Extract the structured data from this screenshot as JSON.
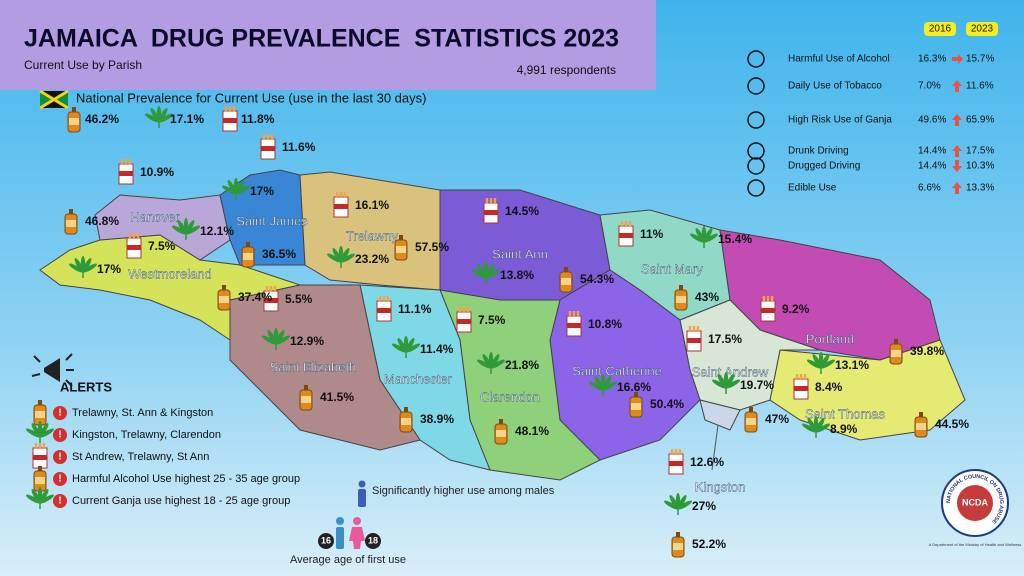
{
  "header": {
    "title": "JAMAICA  DRUG PREVALENCE  STATISTICS 2023",
    "subtitle": "Current Use by Parish",
    "respondents": "4,991 respondents"
  },
  "national": {
    "label": "National Prevalence for Current Use (use in the last 30 days)",
    "alcohol": "46.2%",
    "ganja": "17.1%",
    "tobacco": "11.8%"
  },
  "comparison": {
    "headers": [
      "2016",
      "2023"
    ],
    "rows": [
      {
        "label": "Harmful Use of Alcohol",
        "y2016": "16.3%",
        "y2023": "15.7%"
      },
      {
        "label": "Daily Use of Tobacco",
        "y2016": "7.0%",
        "y2023": "11.6%"
      },
      {
        "label": "High Risk Use of Ganja",
        "y2016": "49.6%",
        "y2023": "65.9%"
      },
      {
        "label": "Drunk Driving",
        "y2016": "14.4%",
        "y2023": "17.5%"
      },
      {
        "label": "Drugged Driving",
        "y2016": "14.4%",
        "y2023": "10.3%"
      },
      {
        "label": "Edible Use",
        "y2016": "6.6%",
        "y2023": "13.3%"
      }
    ]
  },
  "parishes": [
    {
      "name": "Hanover",
      "alcohol": "46.8%",
      "ganja": "12.1%",
      "tobacco": "10.9%"
    },
    {
      "name": "Saint James",
      "alcohol": "36.5%",
      "ganja": "17%",
      "tobacco": "11.6%"
    },
    {
      "name": "Trelawny",
      "alcohol": "57.5%",
      "ganja": "23.2%",
      "tobacco": "16.1%"
    },
    {
      "name": "Saint Ann",
      "alcohol": "54.3%",
      "ganja": "13.8%",
      "tobacco": "14.5%"
    },
    {
      "name": "Saint Mary",
      "alcohol": "43%",
      "ganja": "15.4%",
      "tobacco": "11%"
    },
    {
      "name": "Portland",
      "alcohol": "39.8%",
      "ganja": "13.1%",
      "tobacco": "9.2%"
    },
    {
      "name": "Saint Thomas",
      "alcohol": "44.5%",
      "ganja": "8.9%",
      "tobacco": "8.4%"
    },
    {
      "name": "Saint Andrew",
      "alcohol": "47%",
      "ganja": "19.7%",
      "tobacco": "17.5%"
    },
    {
      "name": "Kingston",
      "alcohol": "52.2%",
      "ganja": "27%",
      "tobacco": "12.6%"
    },
    {
      "name": "Saint Catherine",
      "alcohol": "50.4%",
      "ganja": "16.6%",
      "tobacco": "10.8%"
    },
    {
      "name": "Clarendon",
      "alcohol": "48.1%",
      "ganja": "21.8%",
      "tobacco": "7.5%"
    },
    {
      "name": "Manchester",
      "alcohol": "38.9%",
      "ganja": "11.4%",
      "tobacco": "11.1%"
    },
    {
      "name": "Saint Elizabeth",
      "alcohol": "41.5%",
      "ganja": "12.9%",
      "tobacco": "5.5%"
    },
    {
      "name": "Westmoreland",
      "alcohol": "37.4%",
      "ganja": "17%",
      "tobacco": "7.5%"
    }
  ],
  "alerts": {
    "title": "ALERTS",
    "items": [
      "Trelawny, St. Ann & Kingston",
      "Kingston, Trelawny, Clarendon",
      "St Andrew, Trelawny, St Ann",
      "Harmful Alcohol Use highest 25 - 35 age group",
      "Current Ganja use highest 18 - 25 age group"
    ]
  },
  "males": "Significantly higher use among males",
  "first_use": {
    "label": "Average age of first use",
    "male_age": "16",
    "female_age": "18"
  },
  "logo": {
    "ring": "NATIONAL COUNCIL ON DRUG ABUSE",
    "abbr": "NCDA",
    "dept": "A Department of the Ministry of Health and Wellness"
  }
}
